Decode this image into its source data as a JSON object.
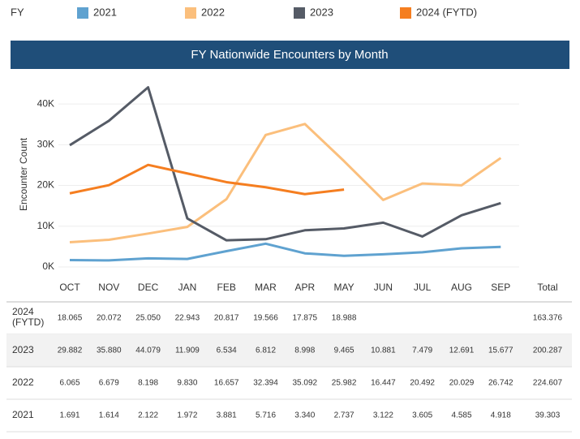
{
  "chart_data": {
    "type": "line",
    "title": "FY Nationwide Encounters by Month",
    "legend_title": "FY",
    "y_label": "Encounter Count",
    "total_label": "Total",
    "categories": [
      "OCT",
      "NOV",
      "DEC",
      "JAN",
      "FEB",
      "MAR",
      "APR",
      "MAY",
      "JUN",
      "JUL",
      "AUG",
      "SEP"
    ],
    "ylim": [
      0,
      45
    ],
    "yticks": [
      {
        "value": 0,
        "label": "0K"
      },
      {
        "value": 10,
        "label": "10K"
      },
      {
        "value": 20,
        "label": "20K"
      },
      {
        "value": 30,
        "label": "30K"
      },
      {
        "value": 40,
        "label": "40K"
      }
    ],
    "grid": true,
    "series": [
      {
        "name": "2021",
        "color": "#5fa2d0",
        "values": [
          1.691,
          1.614,
          2.122,
          1.972,
          3.881,
          5.716,
          3.34,
          2.737,
          3.122,
          3.605,
          4.585,
          4.918
        ],
        "value_labels": [
          "1.691",
          "1.614",
          "2.122",
          "1.972",
          "3.881",
          "5.716",
          "3.340",
          "2.737",
          "3.122",
          "3.605",
          "4.585",
          "4.918"
        ],
        "total": 39.303
      },
      {
        "name": "2022",
        "color": "#fbbf7c",
        "values": [
          6.065,
          6.679,
          8.198,
          9.83,
          16.657,
          32.394,
          35.092,
          25.982,
          16.447,
          20.492,
          20.029,
          26.742
        ],
        "value_labels": [
          "6.065",
          "6.679",
          "8.198",
          "9.830",
          "16.657",
          "32.394",
          "35.092",
          "25.982",
          "16.447",
          "20.492",
          "20.029",
          "26.742"
        ],
        "total": 224.607
      },
      {
        "name": "2023",
        "color": "#555b66",
        "values": [
          29.882,
          35.88,
          44.079,
          11.909,
          6.534,
          6.812,
          8.998,
          9.465,
          10.881,
          7.479,
          12.691,
          15.677
        ],
        "value_labels": [
          "29.882",
          "35.880",
          "44.079",
          "11.909",
          "6.534",
          "6.812",
          "8.998",
          "9.465",
          "10.881",
          "7.479",
          "12.691",
          "15.677"
        ],
        "total": 200.287
      },
      {
        "name": "2024 (FYTD)",
        "color": "#f57e20",
        "values": [
          18.065,
          20.072,
          25.05,
          22.943,
          20.817,
          19.566,
          17.875,
          18.988,
          null,
          null,
          null,
          null
        ],
        "value_labels": [
          "18.065",
          "20.072",
          "25.050",
          "22.943",
          "20.817",
          "19.566",
          "17.875",
          "18.988",
          null,
          null,
          null,
          null
        ],
        "total": 163.376
      }
    ]
  }
}
